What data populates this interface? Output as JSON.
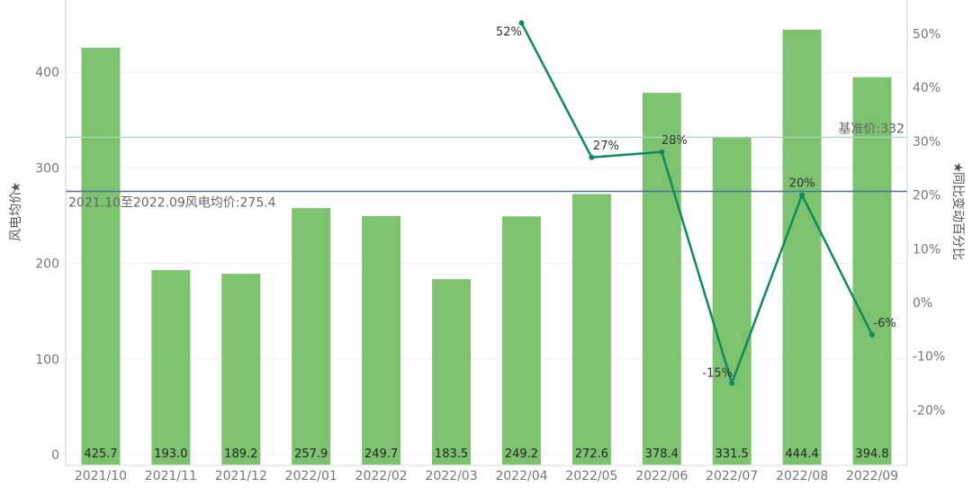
{
  "chart_data": {
    "type": "bar",
    "categories": [
      "2021/10",
      "2021/11",
      "2021/12",
      "2022/01",
      "2022/02",
      "2022/03",
      "2022/04",
      "2022/05",
      "2022/06",
      "2022/07",
      "2022/08",
      "2022/09"
    ],
    "series": [
      {
        "name": "风电均价",
        "type": "bar",
        "axis": "left",
        "values": [
          425.7,
          193.0,
          189.2,
          257.9,
          249.7,
          183.5,
          249.2,
          272.6,
          378.4,
          331.5,
          444.4,
          394.8
        ],
        "labels": [
          "425.7",
          "193.0",
          "189.2",
          "257.9",
          "249.7",
          "183.5",
          "249.2",
          "272.6",
          "378.4",
          "331.5",
          "444.4",
          "394.8"
        ],
        "color": "#7dc36f"
      },
      {
        "name": "同比变动百分比",
        "type": "line",
        "axis": "right",
        "values": [
          null,
          null,
          null,
          null,
          null,
          null,
          52,
          27,
          28,
          -15,
          20,
          -6
        ],
        "labels": [
          "",
          "",
          "",
          "",
          "",
          "",
          "52%",
          "27%",
          "28%",
          "-15%",
          "20%",
          "-6%"
        ],
        "color": "#0e8a5c"
      }
    ],
    "y_left": {
      "label": "风电均价",
      "ylim": [
        -10,
        470
      ],
      "ticks": [
        0,
        100,
        200,
        300,
        400
      ],
      "tick_labels": [
        "0",
        "100",
        "200",
        "300",
        "400"
      ]
    },
    "y_right": {
      "label": "同比变动百分比",
      "ylim": [
        -29,
        56
      ],
      "ticks": [
        -20,
        -10,
        0,
        10,
        20,
        30,
        40,
        50
      ],
      "tick_labels": [
        "-20%",
        "-10%",
        "0%",
        "10%",
        "20%",
        "30%",
        "40%",
        "50%"
      ]
    },
    "reference_lines": [
      {
        "axis": "left",
        "value": 275.4,
        "label": "2021.10至2022.09风电均价:275.4",
        "color": "#4a6fa5"
      },
      {
        "axis": "left",
        "value": 332,
        "label": "基准价:332",
        "color": "#a8d8c0"
      }
    ],
    "axis_marker_icon": "star-icon",
    "grid": false,
    "legend": "none"
  }
}
